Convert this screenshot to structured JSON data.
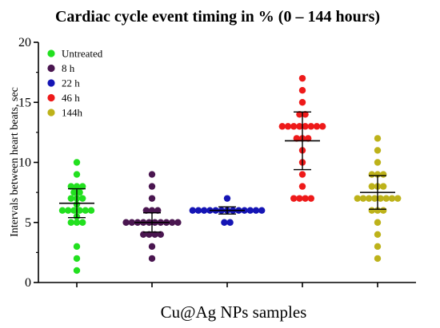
{
  "chart_data": {
    "type": "scatter",
    "title": "Cardiac cycle event timing in % (0 – 144 hours)",
    "xlabel": "Cu@Ag NPs samples",
    "ylabel": "Intervals between heart beats, sec",
    "ylim": [
      0,
      20
    ],
    "yticks": [
      0,
      5,
      10,
      15,
      20
    ],
    "grid": false,
    "legend_position": "top-left",
    "series": [
      {
        "name": "Untreated",
        "color": "#22e01f",
        "mean": 6.6,
        "sd_low": 5.4,
        "sd_high": 7.8,
        "values": [
          1,
          2,
          3,
          5,
          5,
          5,
          5.5,
          6,
          6,
          6,
          6,
          6,
          6,
          6.5,
          7,
          7,
          7,
          7.5,
          7.5,
          8,
          8,
          8,
          9,
          10
        ]
      },
      {
        "name": "8 h",
        "color": "#4a1650",
        "mean": 5.0,
        "sd_low": 4.2,
        "sd_high": 5.8,
        "values": [
          2,
          3,
          4,
          4,
          4,
          4,
          5,
          5,
          5,
          5,
          5,
          5,
          5,
          5,
          5,
          5,
          6,
          6,
          6,
          7,
          8,
          9
        ]
      },
      {
        "name": "22 h",
        "color": "#1515b5",
        "mean": 6.0,
        "sd_low": 5.7,
        "sd_high": 6.3,
        "values": [
          5,
          5,
          6,
          6,
          6,
          6,
          6,
          6,
          6,
          6,
          6,
          6,
          6,
          6,
          6,
          7
        ]
      },
      {
        "name": "46 h",
        "color": "#ee1a1a",
        "mean": 11.8,
        "sd_low": 9.4,
        "sd_high": 14.2,
        "values": [
          7,
          7,
          7,
          7,
          8,
          9,
          10,
          11,
          12,
          12,
          12,
          13,
          13,
          13,
          13,
          13,
          13,
          13,
          13,
          14,
          14,
          15,
          16,
          17
        ]
      },
      {
        "name": "144h",
        "color": "#bdb21a",
        "mean": 7.5,
        "sd_low": 6.1,
        "sd_high": 8.9,
        "values": [
          2,
          3,
          4,
          5,
          6,
          6,
          6,
          7,
          7,
          7,
          7,
          7,
          7,
          7,
          7,
          8,
          8,
          8,
          9,
          9,
          9,
          10,
          11,
          12
        ]
      }
    ]
  }
}
